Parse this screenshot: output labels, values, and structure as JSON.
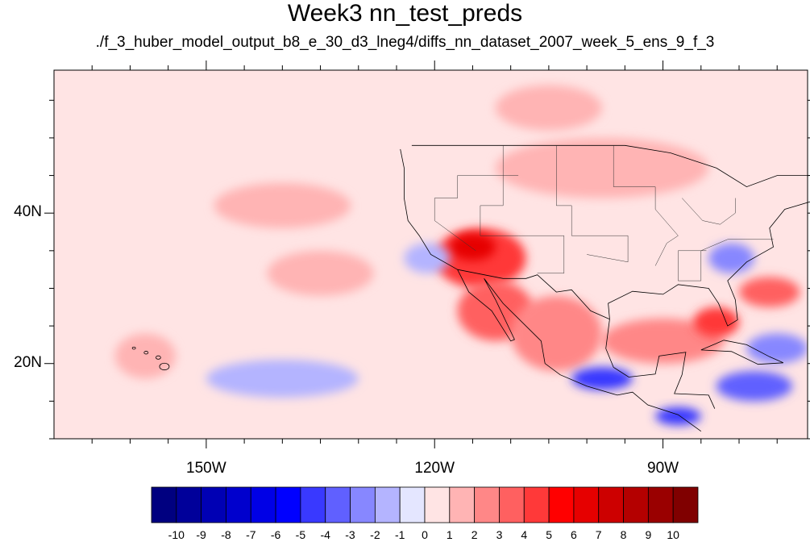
{
  "title": "Week3 nn_test_preds",
  "subtitle": "./f_3_huber_model_output_b8_e_30_d3_lneg4/diffs_nn_dataset_2007_week_5_ens_9_f_3",
  "map": {
    "lon_range": [
      -170,
      -71
    ],
    "lat_range": [
      10,
      59
    ],
    "x_ticks": [
      {
        "lon": -150,
        "label": "150W"
      },
      {
        "lon": -120,
        "label": "120W"
      },
      {
        "lon": -90,
        "label": "90W"
      }
    ],
    "y_ticks": [
      {
        "lat": 40,
        "label": "40N"
      },
      {
        "lat": 20,
        "label": "20N"
      }
    ],
    "background_level": 0.5,
    "regions": [
      {
        "name": "pacific-high-positive",
        "center": [
          -140,
          41
        ],
        "radius": [
          9,
          3
        ],
        "level": 1.5
      },
      {
        "name": "southwest-us-hot",
        "center": [
          -114,
          34
        ],
        "radius": [
          6,
          4
        ],
        "level": 4.5
      },
      {
        "name": "arizona-core",
        "center": [
          -115,
          35.5
        ],
        "radius": [
          3,
          1.8
        ],
        "level": 6
      },
      {
        "name": "baja-positive",
        "center": [
          -112,
          27
        ],
        "radius": [
          5,
          4
        ],
        "level": 3
      },
      {
        "name": "mexico-positive",
        "center": [
          -104,
          24
        ],
        "radius": [
          6,
          5
        ],
        "level": 2
      },
      {
        "name": "gulf-positive",
        "center": [
          -90,
          23
        ],
        "radius": [
          8,
          3
        ],
        "level": 2.5
      },
      {
        "name": "florida-positive",
        "center": [
          -83,
          25.5
        ],
        "radius": [
          3,
          2
        ],
        "level": 4
      },
      {
        "name": "northern-plains-positive",
        "center": [
          -98,
          46
        ],
        "radius": [
          14,
          4
        ],
        "level": 1.5
      },
      {
        "name": "canada-positive",
        "center": [
          -105,
          54
        ],
        "radius": [
          7,
          3
        ],
        "level": 1.5
      },
      {
        "name": "atlantic-positive",
        "center": [
          -76,
          29.5
        ],
        "radius": [
          4,
          2
        ],
        "level": 3
      },
      {
        "name": "central-pacific-positive",
        "center": [
          -135,
          32
        ],
        "radius": [
          7,
          3
        ],
        "level": 1.5
      },
      {
        "name": "hawaii-positive",
        "center": [
          -158,
          21
        ],
        "radius": [
          4,
          3
        ],
        "level": 1.5
      },
      {
        "name": "subtropic-negative",
        "center": [
          -140,
          18
        ],
        "radius": [
          10,
          2.5
        ],
        "level": -1.5
      },
      {
        "name": "carolinas-negative",
        "center": [
          -81,
          34
        ],
        "radius": [
          3,
          2
        ],
        "level": -2.5
      },
      {
        "name": "mexico-coast-negative",
        "center": [
          -98,
          18
        ],
        "radius": [
          4,
          1.5
        ],
        "level": -4
      },
      {
        "name": "central-america-negative",
        "center": [
          -88,
          13
        ],
        "radius": [
          3,
          1.2
        ],
        "level": -4.5
      },
      {
        "name": "caribbean-negative",
        "center": [
          -78,
          17
        ],
        "radius": [
          5,
          2
        ],
        "level": -3
      },
      {
        "name": "atlantic-negative",
        "center": [
          -75,
          22
        ],
        "radius": [
          4,
          2
        ],
        "level": -2
      },
      {
        "name": "california-coast-negative",
        "center": [
          -121,
          34
        ],
        "radius": [
          3,
          2
        ],
        "level": -1.5
      }
    ]
  },
  "colorbar": {
    "labels": [
      "-10",
      "-9",
      "-8",
      "-7",
      "-6",
      "-5",
      "-4",
      "-3",
      "-2",
      "-1",
      "0",
      "1",
      "2",
      "3",
      "4",
      "5",
      "6",
      "7",
      "8",
      "9",
      "10"
    ],
    "colors": [
      "#000080",
      "#00009a",
      "#0000b4",
      "#0000cd",
      "#0000e6",
      "#0000ff",
      "#3939ff",
      "#6060ff",
      "#8787ff",
      "#b4b4ff",
      "#e4e6ff",
      "#ffe4e4",
      "#ffb4b4",
      "#ff8787",
      "#ff6060",
      "#ff3939",
      "#ff0000",
      "#e60000",
      "#cd0000",
      "#b40000",
      "#9a0000",
      "#800000"
    ]
  }
}
